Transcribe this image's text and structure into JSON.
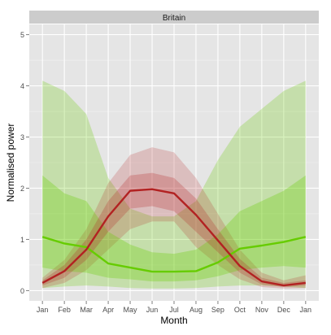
{
  "chart_data": {
    "type": "area",
    "panel_title": "Britain",
    "xlabel": "Month",
    "ylabel": "Normalised power",
    "x": [
      "Jan",
      "Feb",
      "Mar",
      "Apr",
      "May",
      "Jun",
      "Jul",
      "Aug",
      "Sep",
      "Oct",
      "Nov",
      "Dec",
      "Jan"
    ],
    "yticks": [
      "0",
      "1",
      "2",
      "3",
      "4",
      "5"
    ],
    "ylim": [
      -0.2,
      5.2
    ],
    "grid": true,
    "legend": "none",
    "series": [
      {
        "color": "#b22222",
        "mean": [
          0.15,
          0.38,
          0.8,
          1.45,
          1.95,
          1.98,
          1.9,
          1.48,
          0.98,
          0.48,
          0.18,
          0.1,
          0.15
        ],
        "inner_band": {
          "lower": [
            0.1,
            0.25,
            0.6,
            1.15,
            1.6,
            1.65,
            1.55,
            1.15,
            0.75,
            0.35,
            0.12,
            0.07,
            0.1
          ],
          "upper": [
            0.2,
            0.5,
            1.0,
            1.75,
            2.25,
            2.3,
            2.2,
            1.8,
            1.2,
            0.62,
            0.25,
            0.15,
            0.2
          ]
        },
        "outer_band": {
          "lower": [
            0.05,
            0.15,
            0.4,
            0.8,
            1.2,
            1.35,
            1.35,
            0.85,
            0.5,
            0.22,
            0.07,
            0.04,
            0.05
          ],
          "upper": [
            0.25,
            0.6,
            1.2,
            2.1,
            2.65,
            2.8,
            2.7,
            2.2,
            1.5,
            0.8,
            0.35,
            0.2,
            0.3
          ]
        }
      },
      {
        "color": "#66cc00",
        "mean": [
          1.05,
          0.92,
          0.85,
          0.53,
          0.45,
          0.37,
          0.37,
          0.38,
          0.55,
          0.82,
          0.88,
          0.95,
          1.05
        ],
        "inner_band": {
          "lower": [
            0.45,
            0.38,
            0.35,
            0.25,
            0.22,
            0.18,
            0.18,
            0.2,
            0.28,
            0.4,
            0.45,
            0.48,
            0.45
          ],
          "upper": [
            2.25,
            1.9,
            1.75,
            1.15,
            0.9,
            0.75,
            0.72,
            0.8,
            1.1,
            1.55,
            1.75,
            1.95,
            2.25
          ]
        },
        "outer_band": {
          "lower": [
            0.05,
            0.08,
            0.1,
            0.08,
            0.05,
            0.04,
            0.04,
            0.05,
            0.08,
            0.1,
            0.1,
            0.08,
            0.05
          ],
          "upper": [
            4.1,
            3.9,
            3.45,
            2.2,
            1.6,
            1.45,
            1.45,
            1.75,
            2.55,
            3.2,
            3.55,
            3.9,
            4.1
          ]
        }
      }
    ]
  }
}
